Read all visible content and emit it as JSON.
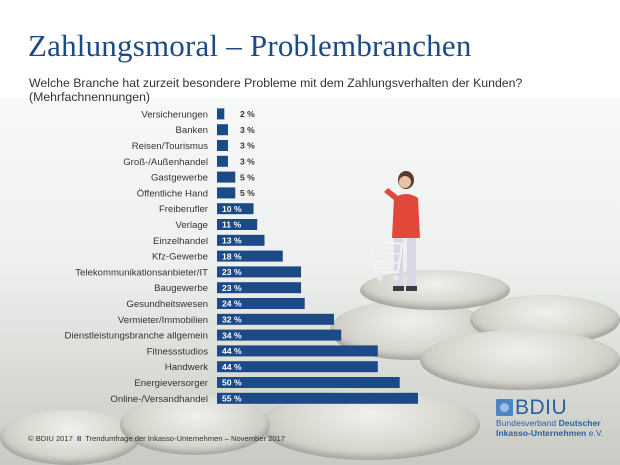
{
  "title": "Zahlungsmoral – Problembranchen",
  "subtitle": "Welche Branche hat zurzeit besondere Probleme mit dem Zahlungsverhalten der Kunden? (Mehrfachnennungen)",
  "footer": {
    "copyright": "© BDIU 2017",
    "separator": "II",
    "source": "Trendumfrage der Inkasso-Unternehmen – November 2017"
  },
  "logo": {
    "name": "BDIU",
    "line1_a": "Bundesverband",
    "line1_b": "Deutscher",
    "line2_a": "Inkasso-Unternehmen",
    "line2_b": "e.V."
  },
  "colors": {
    "bar": "#1b4a86",
    "title": "#1b4a86",
    "logo": "#2a5fa0"
  },
  "chart_data": {
    "type": "bar",
    "orientation": "horizontal",
    "title": "Zahlungsmoral – Problembranchen",
    "xlabel": "",
    "ylabel": "",
    "unit": "%",
    "xlim": [
      0,
      55
    ],
    "grid": false,
    "categories": [
      "Versicherungen",
      "Banken",
      "Reisen/Tourismus",
      "Groß-/Außenhandel",
      "Gastgewerbe",
      "Öffentliche Hand",
      "Freiberufler",
      "Verlage",
      "Einzelhandel",
      "Kfz-Gewerbe",
      "Telekommunikationsanbieter/IT",
      "Baugewerbe",
      "Gesundheitswesen",
      "Vermieter/Immobilien",
      "Dienstleistungsbranche allgemein",
      "Fitnessstudios",
      "Handwerk",
      "Energieversorger",
      "Online-/Versandhandel"
    ],
    "values": [
      2,
      3,
      3,
      3,
      5,
      5,
      10,
      11,
      13,
      18,
      23,
      23,
      24,
      32,
      34,
      44,
      44,
      50,
      55
    ],
    "labels": [
      "2 %",
      "3 %",
      "3 %",
      "3 %",
      "5 %",
      "5 %",
      "10 %",
      "11 %",
      "13 %",
      "18 %",
      "23 %",
      "23 %",
      "24 %",
      "32 %",
      "34 %",
      "44 %",
      "44 %",
      "50 %",
      "55 %"
    ]
  }
}
